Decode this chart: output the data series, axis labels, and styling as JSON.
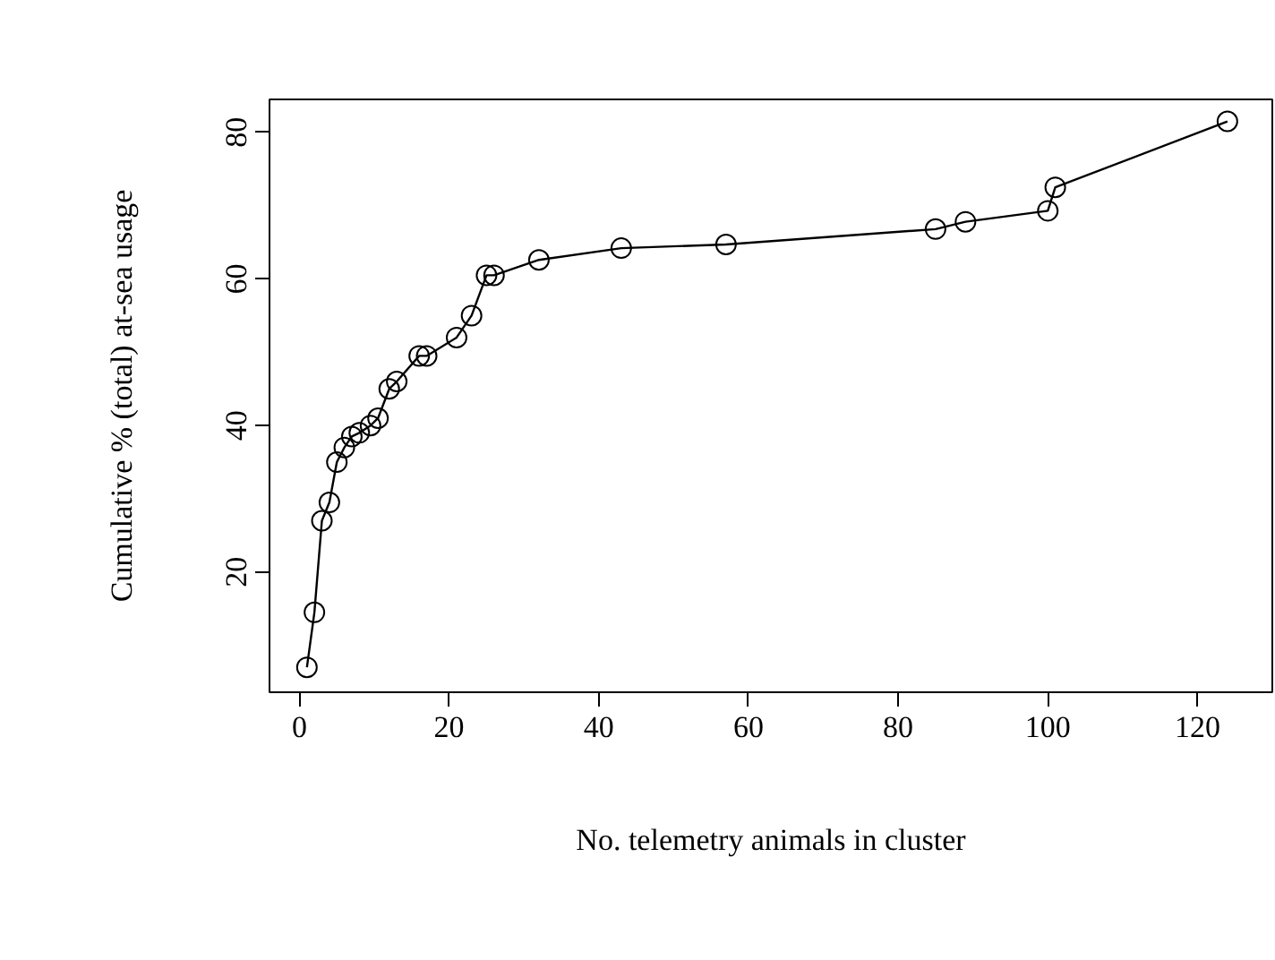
{
  "chart_data": {
    "type": "line",
    "xlabel": "No. telemetry animals in cluster",
    "ylabel": "Cumulative % (total) at-sea usage",
    "x": [
      1,
      2,
      3,
      4,
      5,
      6,
      7,
      8,
      9.5,
      10.5,
      12,
      13,
      16,
      17,
      21,
      23,
      25,
      26,
      32,
      43,
      57,
      85,
      89,
      100,
      101,
      124
    ],
    "series": [
      {
        "color": "#000000",
        "values": [
          7,
          14.5,
          27,
          29.5,
          35,
          37,
          38.5,
          39,
          40,
          41,
          45,
          46,
          49.5,
          49.5,
          52,
          55,
          60.5,
          60.5,
          62.6,
          64.2,
          64.7,
          66.8,
          67.8,
          69.3,
          72.5,
          81.5
        ]
      }
    ],
    "xlim": [
      -4,
      130
    ],
    "ylim": [
      3.6,
      84.5
    ],
    "xticks": [
      0,
      20,
      40,
      60,
      80,
      100,
      120
    ],
    "yticks": [
      20,
      40,
      60,
      80
    ],
    "marker": "circle",
    "line_style": "solid",
    "grid": false
  }
}
